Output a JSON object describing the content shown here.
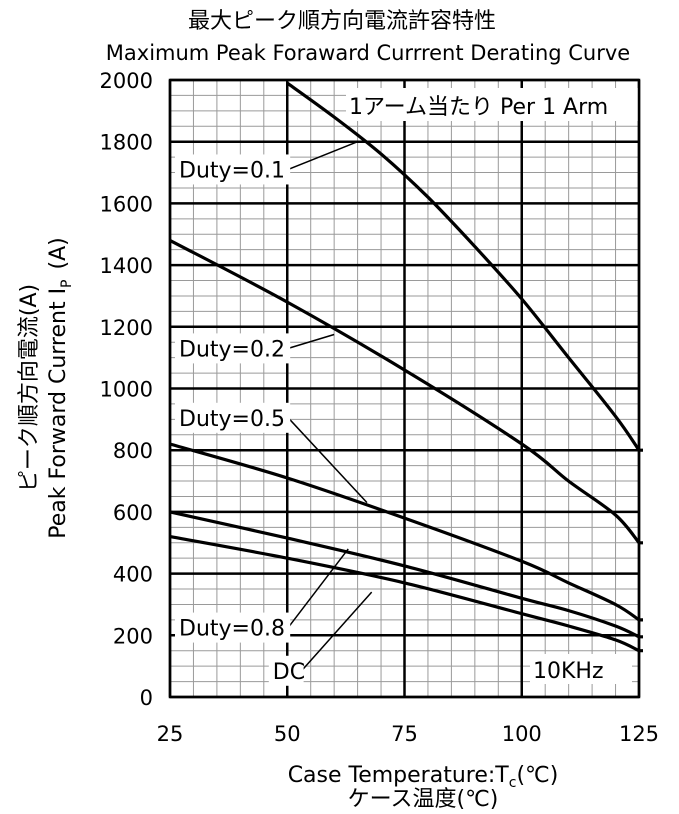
{
  "chart_data": {
    "type": "line",
    "title": "最大ピーク順方向電流許容特性",
    "subtitle": "Maximum Peak Foraward Currrent Derating Curve",
    "ylabel_jp": "ピーク順方向電流(A)",
    "ylabel_en": "Peak Forward Current I",
    "ylabel_en_sub": "P",
    "ylabel_unit": "(A)",
    "xlabel_en": "Case Temperature:T",
    "xlabel_en_sub": "c",
    "xlabel_unit": "(℃)",
    "xlabel_jp": "ケース温度(℃)",
    "xlim": [
      25,
      125
    ],
    "ylim": [
      0,
      2000
    ],
    "xticks": [
      25,
      50,
      75,
      100,
      125
    ],
    "yticks": [
      0,
      200,
      400,
      600,
      800,
      1000,
      1200,
      1400,
      1600,
      1800,
      2000
    ],
    "grid": true,
    "annotation_arm": "1アーム当たり Per 1 Arm",
    "annotation_freq": "10KHz",
    "series": [
      {
        "name": "Duty=0.1",
        "x": [
          50,
          60,
          70,
          80,
          90,
          100,
          110,
          120,
          125
        ],
        "y": [
          1990,
          1880,
          1760,
          1620,
          1460,
          1290,
          1100,
          910,
          800
        ]
      },
      {
        "name": "Duty=0.2",
        "x": [
          25,
          50,
          75,
          100,
          110,
          120,
          125
        ],
        "y": [
          1480,
          1280,
          1060,
          820,
          700,
          590,
          500
        ]
      },
      {
        "name": "Duty=0.5",
        "x": [
          25,
          50,
          75,
          100,
          110,
          120,
          125
        ],
        "y": [
          820,
          710,
          580,
          440,
          370,
          300,
          250
        ]
      },
      {
        "name": "Duty=0.8",
        "x": [
          25,
          50,
          75,
          100,
          110,
          120,
          125
        ],
        "y": [
          600,
          515,
          425,
          320,
          280,
          230,
          195
        ]
      },
      {
        "name": "DC",
        "x": [
          25,
          50,
          75,
          100,
          110,
          120,
          125
        ],
        "y": [
          520,
          450,
          370,
          270,
          230,
          185,
          150
        ]
      }
    ],
    "labels": [
      {
        "text": "Duty=0.1",
        "series": 0,
        "box_x": 25,
        "box_y": 1710,
        "to": [
          65,
          1800
        ]
      },
      {
        "text": "Duty=0.2",
        "series": 1,
        "box_x": 25,
        "box_y": 1130,
        "to": [
          60,
          1175
        ]
      },
      {
        "text": "Duty=0.5",
        "series": 2,
        "box_x": 25,
        "box_y": 905,
        "to": [
          67,
          630
        ]
      },
      {
        "text": "Duty=0.8",
        "series": 3,
        "box_x": 25,
        "box_y": 225,
        "to": [
          63,
          480
        ]
      },
      {
        "text": "DC",
        "series": 4,
        "box_x": 45,
        "box_y": 85,
        "to": [
          68,
          340
        ]
      }
    ]
  }
}
